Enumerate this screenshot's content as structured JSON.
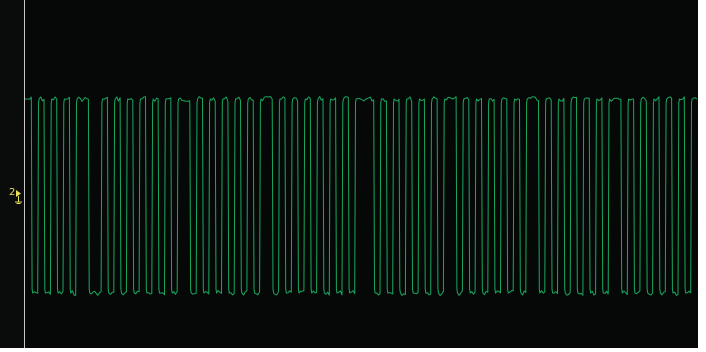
{
  "channel": {
    "number": "2",
    "trace_color": "#19a85e",
    "marker_color": "#e8e05a",
    "marker_icon": "ground-reference-arrow-icon"
  },
  "waveform": {
    "type": "digital-square-wave",
    "bit_pattern": "1010101011001010101010101101010101010110101010101010111010101010101101010101010110101010101011010101010101"
  }
}
